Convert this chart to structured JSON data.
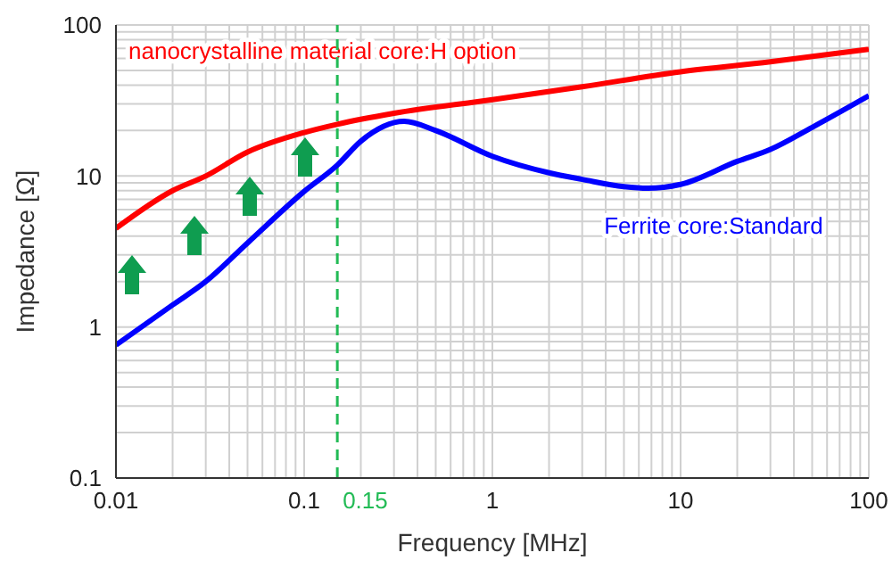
{
  "chart_data": {
    "type": "line",
    "xlabel": "Frequency [MHz]",
    "ylabel": "Impedance [Ω]",
    "log": "xy",
    "grid": true,
    "legend": false,
    "marker": "none",
    "line_style": "solid",
    "xlim": [
      0.01,
      100
    ],
    "xticks": [
      0.01,
      0.1,
      1,
      10,
      100
    ],
    "ylim": [
      0.1,
      100
    ],
    "yticks": [
      0.1,
      1,
      10,
      100
    ],
    "series": [
      {
        "name": "nanocrystalline material core:H option",
        "color": "#ff0000",
        "x": [
          0.01,
          0.02,
          0.03,
          0.05,
          0.1,
          0.15,
          0.3,
          1,
          3,
          10,
          30,
          100
        ],
        "values": [
          4.5,
          8,
          10,
          14.4,
          19.4,
          22,
          26,
          32,
          39,
          49,
          57,
          69
        ]
      },
      {
        "name": "Ferrite core:Standard",
        "color": "#0000ff",
        "x": [
          0.01,
          0.02,
          0.03,
          0.05,
          0.1,
          0.15,
          0.2,
          0.34,
          0.5,
          1,
          2,
          3,
          5,
          6.7,
          10,
          20,
          30,
          50,
          100
        ],
        "values": [
          0.76,
          1.4,
          2,
          3.6,
          7.9,
          11.8,
          17,
          23,
          20,
          13.5,
          10.5,
          9.5,
          8.5,
          8.3,
          8.8,
          12.5,
          15,
          21,
          34
        ]
      }
    ],
    "ref_lines": [
      {
        "axis": "x",
        "value": 0.15,
        "label": "0.15",
        "color": "#22bb55",
        "line_style": "dashed"
      }
    ]
  }
}
